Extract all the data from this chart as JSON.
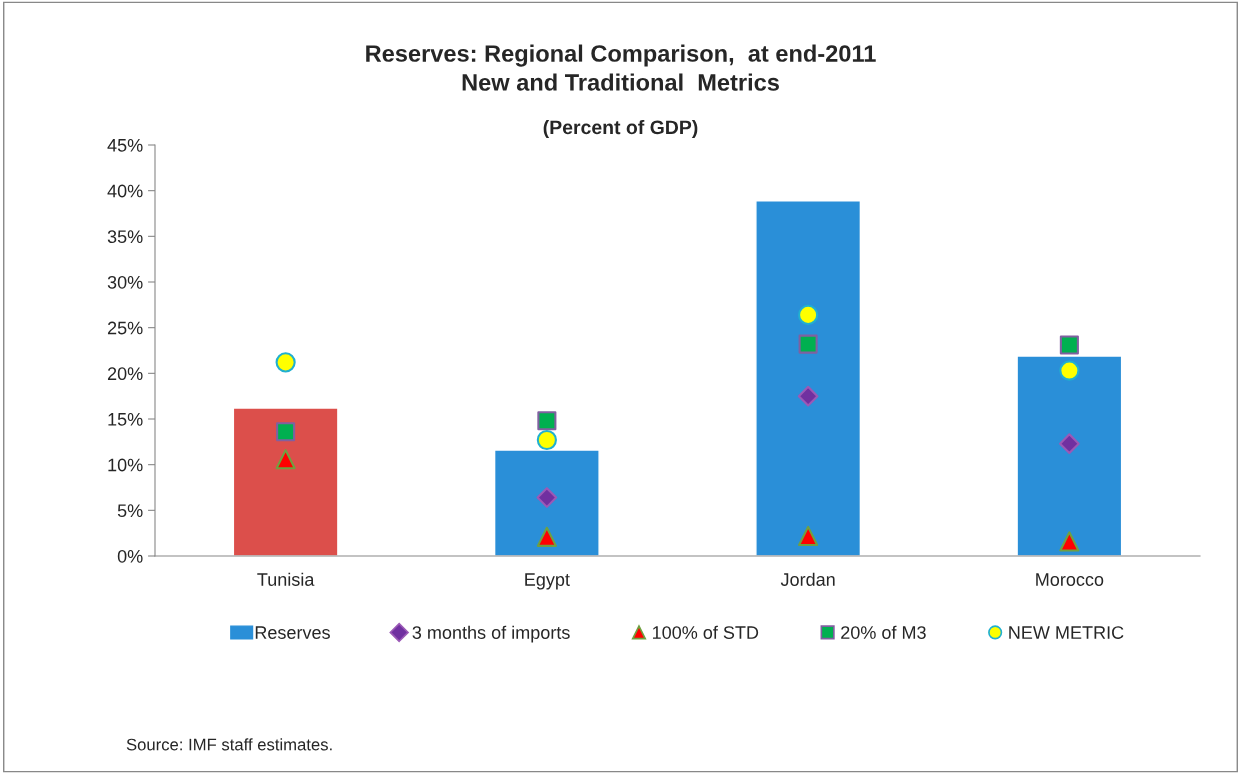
{
  "chart_data": {
    "type": "bar",
    "title": "Reserves: Regional Comparison,  at end-2011\nNew and Traditional  Metrics",
    "subtitle": "(Percent of GDP)",
    "categories": [
      "Tunisia",
      "Egypt",
      "Jordan",
      "Morocco"
    ],
    "series": [
      {
        "name": "Reserves",
        "color": "#2a8fd8",
        "colors": [
          "#dc4f4b",
          "#2a8fd8",
          "#2a8fd8",
          "#2a8fd8"
        ],
        "values": [
          16.2,
          11.6,
          38.9,
          21.9
        ]
      },
      {
        "name": "3 months of imports",
        "type": "scatter",
        "marker": "diamond",
        "color": "#7030a0",
        "values": [
          null,
          6.4,
          17.5,
          12.3
        ]
      },
      {
        "name": "100% of STD",
        "type": "scatter",
        "marker": "triangle",
        "color": "#ff0000",
        "values": [
          10.6,
          2.1,
          2.2,
          1.6
        ]
      },
      {
        "name": "20% of M3",
        "type": "scatter",
        "marker": "square",
        "color": "#00b050",
        "values": [
          13.6,
          14.8,
          23.2,
          23.1
        ]
      },
      {
        "name": "NEW METRIC",
        "type": "scatter",
        "marker": "circle",
        "color": "#ffff00",
        "values": [
          21.2,
          12.7,
          26.4,
          20.3
        ]
      }
    ],
    "ylim": [
      0,
      45
    ],
    "yticks": [
      {
        "value": 0,
        "label": "0%"
      },
      {
        "value": 5,
        "label": "5%"
      },
      {
        "value": 10,
        "label": "10%"
      },
      {
        "value": 15,
        "label": "15%"
      },
      {
        "value": 20,
        "label": "20%"
      },
      {
        "value": 25,
        "label": "25%"
      },
      {
        "value": 30,
        "label": "30%"
      },
      {
        "value": 35,
        "label": "35%"
      },
      {
        "value": 40,
        "label": "40%"
      },
      {
        "value": 45,
        "label": "45%"
      }
    ],
    "grid": false,
    "legend": "bottom",
    "annotations": [
      "Source: IMF staff estimates."
    ]
  }
}
